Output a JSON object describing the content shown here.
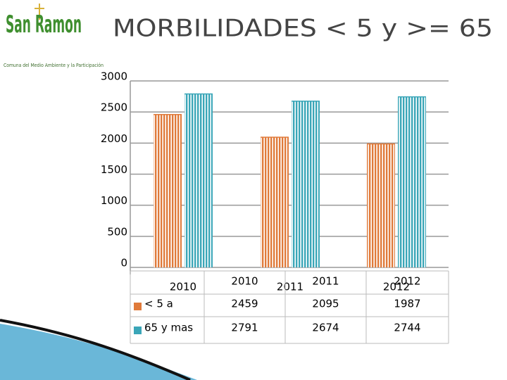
{
  "logo": {
    "name": "San Ramon",
    "tagline": "Comuna del Medio Ambiente y la Participación"
  },
  "chart_data": {
    "type": "bar",
    "title": "MORBILIDADES < 5 y >= 65",
    "categories": [
      "2010",
      "2011",
      "2012"
    ],
    "series": [
      {
        "name": "< 5 a",
        "color": "#e07a3a",
        "values": [
          2459,
          2095,
          1987
        ]
      },
      {
        "name": "65 y mas",
        "color": "#3aa6b8",
        "values": [
          2791,
          2674,
          2744
        ]
      }
    ],
    "ylim": [
      0,
      3000
    ],
    "yticks": [
      0,
      500,
      1000,
      1500,
      2000,
      2500,
      3000
    ],
    "grid": true,
    "legend": "table"
  }
}
